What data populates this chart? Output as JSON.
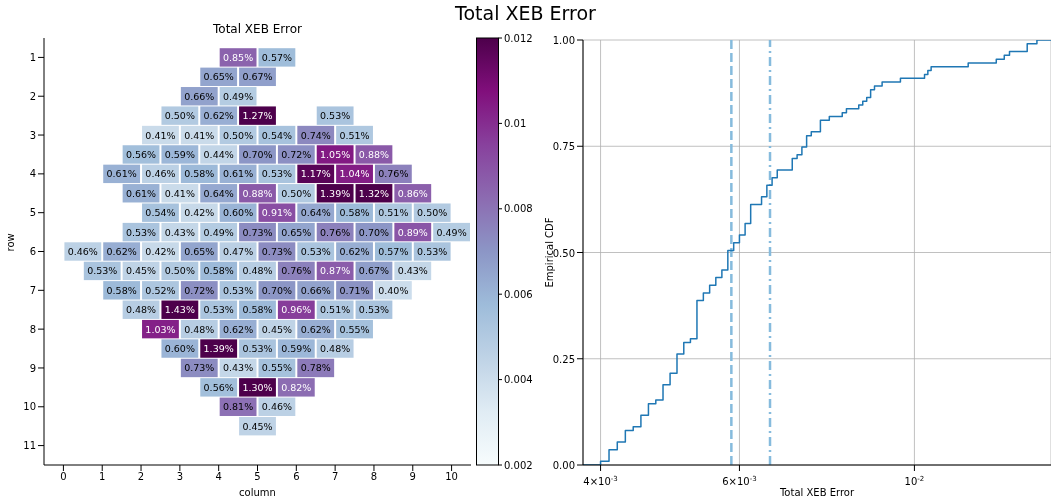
{
  "chart_data": [
    {
      "type": "heatmap",
      "title": "Total XEB Error",
      "subtitle": "Total XEB Error",
      "xlabel": "column",
      "ylabel": "row",
      "categories": [
        "0",
        null,
        "1",
        null,
        "2",
        null,
        "3",
        null,
        "4",
        null,
        "5",
        null,
        "6",
        null,
        "7",
        null,
        "8",
        null,
        "9",
        null,
        "10"
      ],
      "y_categories": [
        "1",
        null,
        "2",
        null,
        "3",
        null,
        "4",
        null,
        "5",
        null,
        "6",
        null,
        "7",
        null,
        "8",
        null,
        "9",
        null,
        "10",
        null,
        "11"
      ],
      "clim": [
        0.002,
        0.012
      ],
      "cticks": [
        0.002,
        0.004,
        0.006,
        0.008,
        0.01,
        0.012
      ],
      "cells": [
        [
          null,
          null,
          null,
          null,
          null,
          null,
          null,
          null,
          null,
          0.0085,
          null,
          0.0057,
          null,
          null,
          null,
          null,
          null,
          null,
          null,
          null,
          null
        ],
        [
          null,
          null,
          null,
          null,
          null,
          null,
          null,
          null,
          0.0065,
          null,
          0.0067,
          null,
          null,
          null,
          null,
          null,
          null,
          null,
          null,
          null,
          null
        ],
        [
          null,
          null,
          null,
          null,
          null,
          null,
          null,
          0.0066,
          null,
          0.0049,
          null,
          null,
          null,
          null,
          null,
          null,
          null,
          null,
          null,
          null,
          null
        ],
        [
          null,
          null,
          null,
          null,
          null,
          null,
          0.005,
          null,
          0.0062,
          null,
          0.0127,
          null,
          null,
          null,
          0.0053,
          null,
          null,
          null,
          null,
          null,
          null
        ],
        [
          null,
          null,
          null,
          null,
          null,
          0.0041,
          null,
          0.0041,
          null,
          0.005,
          null,
          0.0054,
          null,
          0.0074,
          null,
          0.0051,
          null,
          null,
          null,
          null,
          null
        ],
        [
          null,
          null,
          null,
          null,
          0.0056,
          null,
          0.0059,
          null,
          0.0044,
          null,
          0.007,
          null,
          0.0072,
          null,
          0.0105,
          null,
          0.0088,
          null,
          null,
          null,
          null
        ],
        [
          null,
          null,
          null,
          0.0061,
          null,
          0.0046,
          null,
          0.0058,
          null,
          0.0061,
          null,
          0.0053,
          null,
          0.0117,
          null,
          0.0104,
          null,
          0.0076,
          null,
          null,
          null
        ],
        [
          null,
          null,
          null,
          null,
          0.0061,
          null,
          0.0041,
          null,
          0.0064,
          null,
          0.0088,
          null,
          0.005,
          null,
          0.0139,
          null,
          0.0132,
          null,
          0.0086,
          null,
          null
        ],
        [
          null,
          null,
          null,
          null,
          null,
          0.0054,
          null,
          0.0042,
          null,
          0.006,
          null,
          0.0091,
          null,
          0.0064,
          null,
          0.0058,
          null,
          0.0051,
          null,
          0.005,
          null
        ],
        [
          null,
          null,
          null,
          null,
          0.0053,
          null,
          0.0043,
          null,
          0.0049,
          null,
          0.0073,
          null,
          0.0065,
          null,
          0.0076,
          null,
          0.007,
          null,
          0.0089,
          null,
          0.0049
        ],
        [
          null,
          0.0046,
          null,
          0.0062,
          null,
          0.0042,
          null,
          0.0065,
          null,
          0.0047,
          null,
          0.0073,
          null,
          0.0053,
          null,
          0.0062,
          null,
          0.0057,
          null,
          0.0053,
          null
        ],
        [
          null,
          null,
          0.0053,
          null,
          0.0045,
          null,
          0.005,
          null,
          0.0058,
          null,
          0.0048,
          null,
          0.0076,
          null,
          0.0087,
          null,
          0.0067,
          null,
          0.0043,
          null,
          null
        ],
        [
          null,
          null,
          null,
          0.0058,
          null,
          0.0052,
          null,
          0.0072,
          null,
          0.0053,
          null,
          0.007,
          null,
          0.0066,
          null,
          0.0071,
          null,
          0.004,
          null,
          null,
          null
        ],
        [
          null,
          null,
          null,
          null,
          0.0048,
          null,
          0.0143,
          null,
          0.0053,
          null,
          0.0058,
          null,
          0.0096,
          null,
          0.0051,
          null,
          0.0053,
          null,
          null,
          null,
          null
        ],
        [
          null,
          null,
          null,
          null,
          null,
          0.0103,
          null,
          0.0048,
          null,
          0.0062,
          null,
          0.0045,
          null,
          0.0062,
          null,
          0.0055,
          null,
          null,
          null,
          null,
          null
        ],
        [
          null,
          null,
          null,
          null,
          null,
          null,
          0.006,
          null,
          0.0139,
          null,
          0.0053,
          null,
          0.0059,
          null,
          0.0048,
          null,
          null,
          null,
          null,
          null,
          null
        ],
        [
          null,
          null,
          null,
          null,
          null,
          null,
          null,
          0.0073,
          null,
          0.0043,
          null,
          0.0055,
          null,
          0.0078,
          null,
          null,
          null,
          null,
          null,
          null,
          null
        ],
        [
          null,
          null,
          null,
          null,
          null,
          null,
          null,
          null,
          0.0056,
          null,
          0.013,
          null,
          0.0082,
          null,
          null,
          null,
          null,
          null,
          null,
          null,
          null
        ],
        [
          null,
          null,
          null,
          null,
          null,
          null,
          null,
          null,
          null,
          0.0081,
          null,
          0.0046,
          null,
          null,
          null,
          null,
          null,
          null,
          null,
          null,
          null
        ],
        [
          null,
          null,
          null,
          null,
          null,
          null,
          null,
          null,
          null,
          null,
          0.0045,
          null,
          null,
          null,
          null,
          null,
          null,
          null,
          null,
          null,
          null
        ],
        [
          null,
          null,
          null,
          null,
          null,
          null,
          null,
          null,
          null,
          null,
          null,
          null,
          null,
          null,
          null,
          null,
          null,
          null,
          null,
          null,
          null
        ]
      ],
      "cell_labels": [
        [
          null,
          null,
          null,
          null,
          null,
          null,
          null,
          null,
          null,
          "0.85%",
          null,
          "0.57%",
          null,
          null,
          null,
          null,
          null,
          null,
          null,
          null,
          null
        ],
        [
          null,
          null,
          null,
          null,
          null,
          null,
          null,
          null,
          "0.65%",
          null,
          "0.67%",
          null,
          null,
          null,
          null,
          null,
          null,
          null,
          null,
          null,
          null
        ],
        [
          null,
          null,
          null,
          null,
          null,
          null,
          null,
          "0.66%",
          null,
          "0.49%",
          null,
          null,
          null,
          null,
          null,
          null,
          null,
          null,
          null,
          null,
          null
        ],
        [
          null,
          null,
          null,
          null,
          null,
          null,
          "0.50%",
          null,
          "0.62%",
          null,
          "1.27%",
          null,
          null,
          null,
          "0.53%",
          null,
          null,
          null,
          null,
          null,
          null
        ],
        [
          null,
          null,
          null,
          null,
          null,
          "0.41%",
          null,
          "0.41%",
          null,
          "0.50%",
          null,
          "0.54%",
          null,
          "0.74%",
          null,
          "0.51%",
          null,
          null,
          null,
          null,
          null
        ],
        [
          null,
          null,
          null,
          null,
          "0.56%",
          null,
          "0.59%",
          null,
          "0.44%",
          null,
          "0.70%",
          null,
          "0.72%",
          null,
          "1.05%",
          null,
          "0.88%",
          null,
          null,
          null,
          null
        ],
        [
          null,
          null,
          null,
          "0.61%",
          null,
          "0.46%",
          null,
          "0.58%",
          null,
          "0.61%",
          null,
          "0.53%",
          null,
          "1.17%",
          null,
          "1.04%",
          null,
          "0.76%",
          null,
          null,
          null
        ],
        [
          null,
          null,
          null,
          null,
          "0.61%",
          null,
          "0.41%",
          null,
          "0.64%",
          null,
          "0.88%",
          null,
          "0.50%",
          null,
          "1.39%",
          null,
          "1.32%",
          null,
          "0.86%",
          null,
          null
        ],
        [
          null,
          null,
          null,
          null,
          null,
          "0.54%",
          null,
          "0.42%",
          null,
          "0.60%",
          null,
          "0.91%",
          null,
          "0.64%",
          null,
          "0.58%",
          null,
          "0.51%",
          null,
          "0.50%",
          null
        ],
        [
          null,
          null,
          null,
          null,
          "0.53%",
          null,
          "0.43%",
          null,
          "0.49%",
          null,
          "0.73%",
          null,
          "0.65%",
          null,
          "0.76%",
          null,
          "0.70%",
          null,
          "0.89%",
          null,
          "0.49%"
        ],
        [
          null,
          "0.46%",
          null,
          "0.62%",
          null,
          "0.42%",
          null,
          "0.65%",
          null,
          "0.47%",
          null,
          "0.73%",
          null,
          "0.53%",
          null,
          "0.62%",
          null,
          "0.57%",
          null,
          "0.53%",
          null
        ],
        [
          null,
          null,
          "0.53%",
          null,
          "0.45%",
          null,
          "0.50%",
          null,
          "0.58%",
          null,
          "0.48%",
          null,
          "0.76%",
          null,
          "0.87%",
          null,
          "0.67%",
          null,
          "0.43%",
          null,
          null
        ],
        [
          null,
          null,
          null,
          "0.58%",
          null,
          "0.52%",
          null,
          "0.72%",
          null,
          "0.53%",
          null,
          "0.70%",
          null,
          "0.66%",
          null,
          "0.71%",
          null,
          "0.40%",
          null,
          null,
          null
        ],
        [
          null,
          null,
          null,
          null,
          "0.48%",
          null,
          "1.43%",
          null,
          "0.53%",
          null,
          "0.58%",
          null,
          "0.96%",
          null,
          "0.51%",
          null,
          "0.53%",
          null,
          null,
          null,
          null
        ],
        [
          null,
          null,
          null,
          null,
          null,
          "1.03%",
          null,
          "0.48%",
          null,
          "0.62%",
          null,
          "0.45%",
          null,
          "0.62%",
          null,
          "0.55%",
          null,
          null,
          null,
          null,
          null
        ],
        [
          null,
          null,
          null,
          null,
          null,
          null,
          "0.60%",
          null,
          "1.39%",
          null,
          "0.53%",
          null,
          "0.59%",
          null,
          "0.48%",
          null,
          null,
          null,
          null,
          null,
          null
        ],
        [
          null,
          null,
          null,
          null,
          null,
          null,
          null,
          "0.73%",
          null,
          "0.43%",
          null,
          "0.55%",
          null,
          "0.78%",
          null,
          null,
          null,
          null,
          null,
          null,
          null
        ],
        [
          null,
          null,
          null,
          null,
          null,
          null,
          null,
          null,
          "0.56%",
          null,
          "1.30%",
          null,
          "0.82%",
          null,
          null,
          null,
          null,
          null,
          null,
          null,
          null
        ],
        [
          null,
          null,
          null,
          null,
          null,
          null,
          null,
          null,
          null,
          "0.81%",
          null,
          "0.46%",
          null,
          null,
          null,
          null,
          null,
          null,
          null,
          null,
          null
        ],
        [
          null,
          null,
          null,
          null,
          null,
          null,
          null,
          null,
          null,
          null,
          "0.45%",
          null,
          null,
          null,
          null,
          null,
          null,
          null,
          null,
          null,
          null
        ],
        [
          null,
          null,
          null,
          null,
          null,
          null,
          null,
          null,
          null,
          null,
          null,
          null,
          null,
          null,
          null,
          null,
          null,
          null,
          null,
          null,
          null
        ]
      ]
    },
    {
      "type": "step",
      "xlabel": "Total XEB Error",
      "ylabel": "Empirical CDF",
      "log": "x",
      "grid": true,
      "xlim": [
        0.0038,
        0.0149
      ],
      "xticks": [
        {
          "value": 0.004,
          "label": "4×10$^{-3}$"
        },
        {
          "value": 0.006,
          "label": "6×10$^{-3}$"
        },
        {
          "value": 0.01,
          "label": "10$^{-2}$"
        }
      ],
      "ylim": [
        0,
        1
      ],
      "yticks": [
        {
          "value": 0,
          "label": "0.00"
        },
        {
          "value": 0.25,
          "label": "0.25"
        },
        {
          "value": 0.5,
          "label": "0.50"
        },
        {
          "value": 0.75,
          "label": "0.75"
        },
        {
          "value": 1,
          "label": "1.00"
        }
      ],
      "ref_lines": [
        {
          "axis": "x",
          "value": 0.00586,
          "color": "#86bbdd",
          "line_style": "dashed"
        },
        {
          "axis": "x",
          "value": 0.00656,
          "color": "#86bbdd",
          "line_style": "dashdot"
        }
      ],
      "series": [
        {
          "color": "#1f77b4",
          "x": [
            0.0038,
            0.004,
            0.0041,
            0.0042,
            0.0043,
            0.0044,
            0.0045,
            0.0046,
            0.0047,
            0.0048,
            0.0049,
            0.005,
            0.0051,
            0.0052,
            0.0053,
            0.0054,
            0.0055,
            0.0056,
            0.0057,
            0.0058,
            0.0059,
            0.006,
            0.0061,
            0.0062,
            0.0064,
            0.0065,
            0.0066,
            0.0067,
            0.007,
            0.0071,
            0.0072,
            0.0073,
            0.0074,
            0.0076,
            0.0078,
            0.0081,
            0.0082,
            0.0085,
            0.0086,
            0.0087,
            0.0088,
            0.0089,
            0.0091,
            0.0096,
            0.0103,
            0.0104,
            0.0105,
            0.0117,
            0.0127,
            0.013,
            0.0132,
            0.0139,
            0.0143,
            0.0149
          ],
          "values": [
            0,
            0.009,
            0.036,
            0.054,
            0.081,
            0.09,
            0.117,
            0.144,
            0.153,
            0.189,
            0.216,
            0.261,
            0.288,
            0.297,
            0.387,
            0.405,
            0.423,
            0.441,
            0.459,
            0.505,
            0.523,
            0.541,
            0.568,
            0.613,
            0.631,
            0.658,
            0.676,
            0.694,
            0.721,
            0.73,
            0.748,
            0.775,
            0.784,
            0.811,
            0.82,
            0.829,
            0.838,
            0.847,
            0.856,
            0.865,
            0.883,
            0.892,
            0.901,
            0.91,
            0.919,
            0.928,
            0.937,
            0.946,
            0.955,
            0.964,
            0.973,
            0.991,
            1,
            1
          ]
        }
      ]
    }
  ]
}
